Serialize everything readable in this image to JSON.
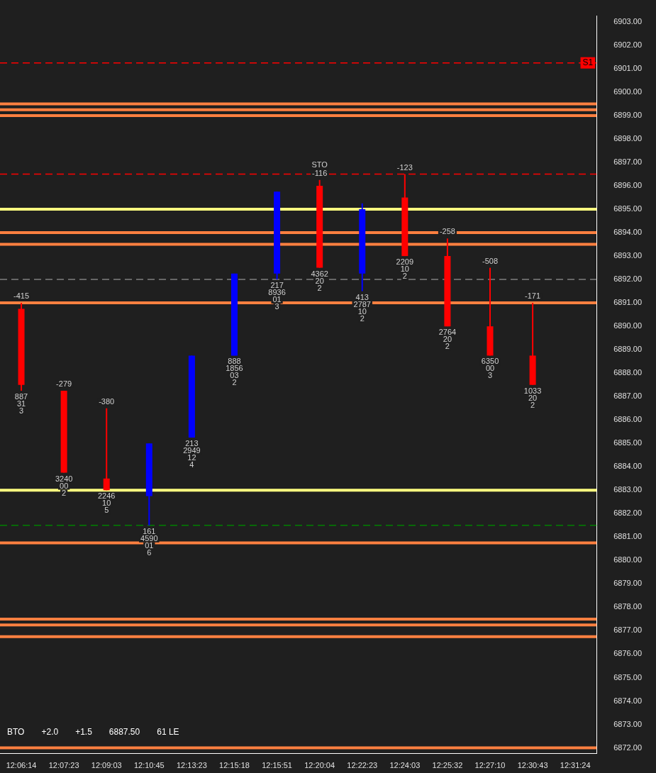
{
  "chart_data": {
    "type": "candlestick",
    "grid": false,
    "categories": [
      "12:06:14",
      "12:07:23",
      "12:09:03",
      "12:10:45",
      "12:13:23",
      "12:15:18",
      "12:15:51",
      "12:20:04",
      "12:22:23",
      "12:24:03",
      "12:25:32",
      "12:27:10",
      "12:30:43",
      "12:31:24"
    ],
    "ohlc": [
      [
        6890.75,
        6891.0,
        6887.25,
        6887.5
      ],
      [
        6887.25,
        6887.25,
        6883.75,
        6883.75
      ],
      [
        6883.5,
        6886.5,
        6883.0,
        6883.0
      ],
      [
        6882.75,
        6885.0,
        6881.5,
        6885.0
      ],
      [
        6885.25,
        6888.75,
        6885.25,
        6888.75
      ],
      [
        6888.75,
        6892.25,
        6888.75,
        6892.25
      ],
      [
        6892.25,
        6895.75,
        6892.0,
        6895.75
      ],
      [
        6896.0,
        6896.25,
        6892.5,
        6892.5
      ],
      [
        6892.25,
        6895.25,
        6891.5,
        6895.0
      ],
      [
        6895.5,
        6896.5,
        6893.0,
        6893.0
      ],
      [
        6893.0,
        6893.75,
        6890.0,
        6890.0
      ],
      [
        6890.0,
        6892.5,
        6888.75,
        6888.75
      ],
      [
        6888.75,
        6891.0,
        6887.5,
        6887.5
      ],
      null
    ],
    "colors": [
      "#ff0000",
      "#ff0000",
      "#ff0000",
      "#0000ff",
      "#0000ff",
      "#0000ff",
      "#0000ff",
      "#ff0000",
      "#0000ff",
      "#ff0000",
      "#ff0000",
      "#ff0000",
      "#ff0000",
      null
    ],
    "ylim": [
      6871.75,
      6903.25
    ],
    "yticks": [
      {
        "value": 6872,
        "label": "6872.00"
      },
      {
        "value": 6873,
        "label": "6873.00"
      },
      {
        "value": 6874,
        "label": "6874.00"
      },
      {
        "value": 6875,
        "label": "6875.00"
      },
      {
        "value": 6876,
        "label": "6876.00"
      },
      {
        "value": 6877,
        "label": "6877.00"
      },
      {
        "value": 6878,
        "label": "6878.00"
      },
      {
        "value": 6879,
        "label": "6879.00"
      },
      {
        "value": 6880,
        "label": "6880.00"
      },
      {
        "value": 6881,
        "label": "6881.00"
      },
      {
        "value": 6882,
        "label": "6882.00"
      },
      {
        "value": 6883,
        "label": "6883.00"
      },
      {
        "value": 6884,
        "label": "6884.00"
      },
      {
        "value": 6885,
        "label": "6885.00"
      },
      {
        "value": 6886,
        "label": "6886.00"
      },
      {
        "value": 6887,
        "label": "6887.00"
      },
      {
        "value": 6888,
        "label": "6888.00"
      },
      {
        "value": 6889,
        "label": "6889.00"
      },
      {
        "value": 6890,
        "label": "6890.00"
      },
      {
        "value": 6891,
        "label": "6891.00"
      },
      {
        "value": 6892,
        "label": "6892.00"
      },
      {
        "value": 6893,
        "label": "6893.00"
      },
      {
        "value": 6894,
        "label": "6894.00"
      },
      {
        "value": 6895,
        "label": "6895.00"
      },
      {
        "value": 6896,
        "label": "6896.00"
      },
      {
        "value": 6897,
        "label": "6897.00"
      },
      {
        "value": 6898,
        "label": "6898.00"
      },
      {
        "value": 6899,
        "label": "6899.00"
      },
      {
        "value": 6900,
        "label": "6900.00"
      },
      {
        "value": 6901,
        "label": "6901.00"
      },
      {
        "value": 6902,
        "label": "6902.00"
      },
      {
        "value": 6903,
        "label": "6903.00"
      }
    ],
    "ref_lines": [
      {
        "axis": "y",
        "value": 6899.5,
        "color": "#ff8040",
        "line_style": "solid"
      },
      {
        "axis": "y",
        "value": 6899.25,
        "color": "#ff8040",
        "line_style": "solid"
      },
      {
        "axis": "y",
        "value": 6899.0,
        "color": "#ff8040",
        "line_style": "solid"
      },
      {
        "axis": "y",
        "value": 6894.0,
        "color": "#ff8040",
        "line_style": "solid"
      },
      {
        "axis": "y",
        "value": 6893.5,
        "color": "#ff8040",
        "line_style": "solid"
      },
      {
        "axis": "y",
        "value": 6891.0,
        "color": "#ff8040",
        "line_style": "solid"
      },
      {
        "axis": "y",
        "value": 6880.75,
        "color": "#ff8040",
        "line_style": "solid"
      },
      {
        "axis": "y",
        "value": 6877.5,
        "color": "#ff8040",
        "line_style": "solid"
      },
      {
        "axis": "y",
        "value": 6877.25,
        "color": "#ff8040",
        "line_style": "solid"
      },
      {
        "axis": "y",
        "value": 6876.75,
        "color": "#ff8040",
        "line_style": "solid"
      },
      {
        "axis": "y",
        "value": 6872.0,
        "color": "#ff8040",
        "line_style": "solid"
      },
      {
        "axis": "y",
        "value": 6895.0,
        "color": "#ffff80",
        "line_style": "solid"
      },
      {
        "axis": "y",
        "value": 6883.0,
        "color": "#ffff80",
        "line_style": "solid"
      },
      {
        "axis": "y",
        "value": 6901.25,
        "color": "#ff0000",
        "line_style": "dashed",
        "label": "S1"
      },
      {
        "axis": "y",
        "value": 6896.5,
        "color": "#ff0000",
        "line_style": "dashed"
      },
      {
        "axis": "y",
        "value": 6892.0,
        "color": "#808080",
        "line_style": "dashed"
      },
      {
        "axis": "y",
        "value": 6881.5,
        "color": "#008000",
        "line_style": "dashed"
      }
    ],
    "annotations": [
      {
        "text": "-415",
        "x": "12:06:14",
        "y": 6891.0
      },
      {
        "text": "887",
        "x": "12:06:14",
        "y": 6887.25
      },
      {
        "text": "31",
        "x": "12:06:14",
        "y": 6887.25
      },
      {
        "text": "3",
        "x": "12:06:14",
        "y": 6887.25
      },
      {
        "text": "-279",
        "x": "12:07:23",
        "y": 6887.25
      },
      {
        "text": "3240",
        "x": "12:07:23",
        "y": 6883.75
      },
      {
        "text": "00",
        "x": "12:07:23",
        "y": 6883.75
      },
      {
        "text": "2",
        "x": "12:07:23",
        "y": 6883.75
      },
      {
        "text": "-380",
        "x": "12:09:03",
        "y": 6886.5
      },
      {
        "text": "2246",
        "x": "12:09:03",
        "y": 6883.0
      },
      {
        "text": "10",
        "x": "12:09:03",
        "y": 6883.0
      },
      {
        "text": "5",
        "x": "12:09:03",
        "y": 6883.0
      },
      {
        "text": "161",
        "x": "12:10:45",
        "y": 6881.5
      },
      {
        "text": "4590",
        "x": "12:10:45",
        "y": 6881.5
      },
      {
        "text": "01",
        "x": "12:10:45",
        "y": 6881.5
      },
      {
        "text": "6",
        "x": "12:10:45",
        "y": 6881.5
      },
      {
        "text": "213",
        "x": "12:13:23",
        "y": 6885.25
      },
      {
        "text": "2949",
        "x": "12:13:23",
        "y": 6885.25
      },
      {
        "text": "12",
        "x": "12:13:23",
        "y": 6885.25
      },
      {
        "text": "4",
        "x": "12:13:23",
        "y": 6885.25
      },
      {
        "text": "888",
        "x": "12:15:18",
        "y": 6888.75
      },
      {
        "text": "1856",
        "x": "12:15:18",
        "y": 6888.75
      },
      {
        "text": "03",
        "x": "12:15:18",
        "y": 6888.75
      },
      {
        "text": "2",
        "x": "12:15:18",
        "y": 6888.75
      },
      {
        "text": "217",
        "x": "12:15:51",
        "y": 6892.0
      },
      {
        "text": "8936",
        "x": "12:15:51",
        "y": 6892.0
      },
      {
        "text": "01",
        "x": "12:15:51",
        "y": 6892.0
      },
      {
        "text": "3",
        "x": "12:15:51",
        "y": 6892.0
      },
      {
        "text": "-116",
        "x": "12:20:04",
        "y": 6896.25
      },
      {
        "text": "STO",
        "x": "12:20:04",
        "y": 6896.25
      },
      {
        "text": "4362",
        "x": "12:20:04",
        "y": 6892.5
      },
      {
        "text": "20",
        "x": "12:20:04",
        "y": 6892.5
      },
      {
        "text": "2",
        "x": "12:20:04",
        "y": 6892.5
      },
      {
        "text": "413",
        "x": "12:22:23",
        "y": 6891.5
      },
      {
        "text": "2787",
        "x": "12:22:23",
        "y": 6891.5
      },
      {
        "text": "10",
        "x": "12:22:23",
        "y": 6891.5
      },
      {
        "text": "2",
        "x": "12:22:23",
        "y": 6891.5
      },
      {
        "text": "-123",
        "x": "12:24:03",
        "y": 6896.5
      },
      {
        "text": "2209",
        "x": "12:24:03",
        "y": 6893.0
      },
      {
        "text": "10",
        "x": "12:24:03",
        "y": 6893.0
      },
      {
        "text": "2",
        "x": "12:24:03",
        "y": 6893.0
      },
      {
        "text": "-258",
        "x": "12:25:32",
        "y": 6893.75
      },
      {
        "text": "2764",
        "x": "12:25:32",
        "y": 6890.0
      },
      {
        "text": "20",
        "x": "12:25:32",
        "y": 6890.0
      },
      {
        "text": "2",
        "x": "12:25:32",
        "y": 6890.0
      },
      {
        "text": "-508",
        "x": "12:27:10",
        "y": 6892.5
      },
      {
        "text": "6350",
        "x": "12:27:10",
        "y": 6888.75
      },
      {
        "text": "00",
        "x": "12:27:10",
        "y": 6888.75
      },
      {
        "text": "3",
        "x": "12:27:10",
        "y": 6888.75
      },
      {
        "text": "-171",
        "x": "12:30:43",
        "y": 6891.0
      },
      {
        "text": "1033",
        "x": "12:30:43",
        "y": 6887.5
      },
      {
        "text": "20",
        "x": "12:30:43",
        "y": 6887.5
      },
      {
        "text": "2",
        "x": "12:30:43",
        "y": 6887.5
      },
      "BTO",
      "+2.0",
      "+1.5",
      "6887.50",
      "61 LE"
    ]
  }
}
